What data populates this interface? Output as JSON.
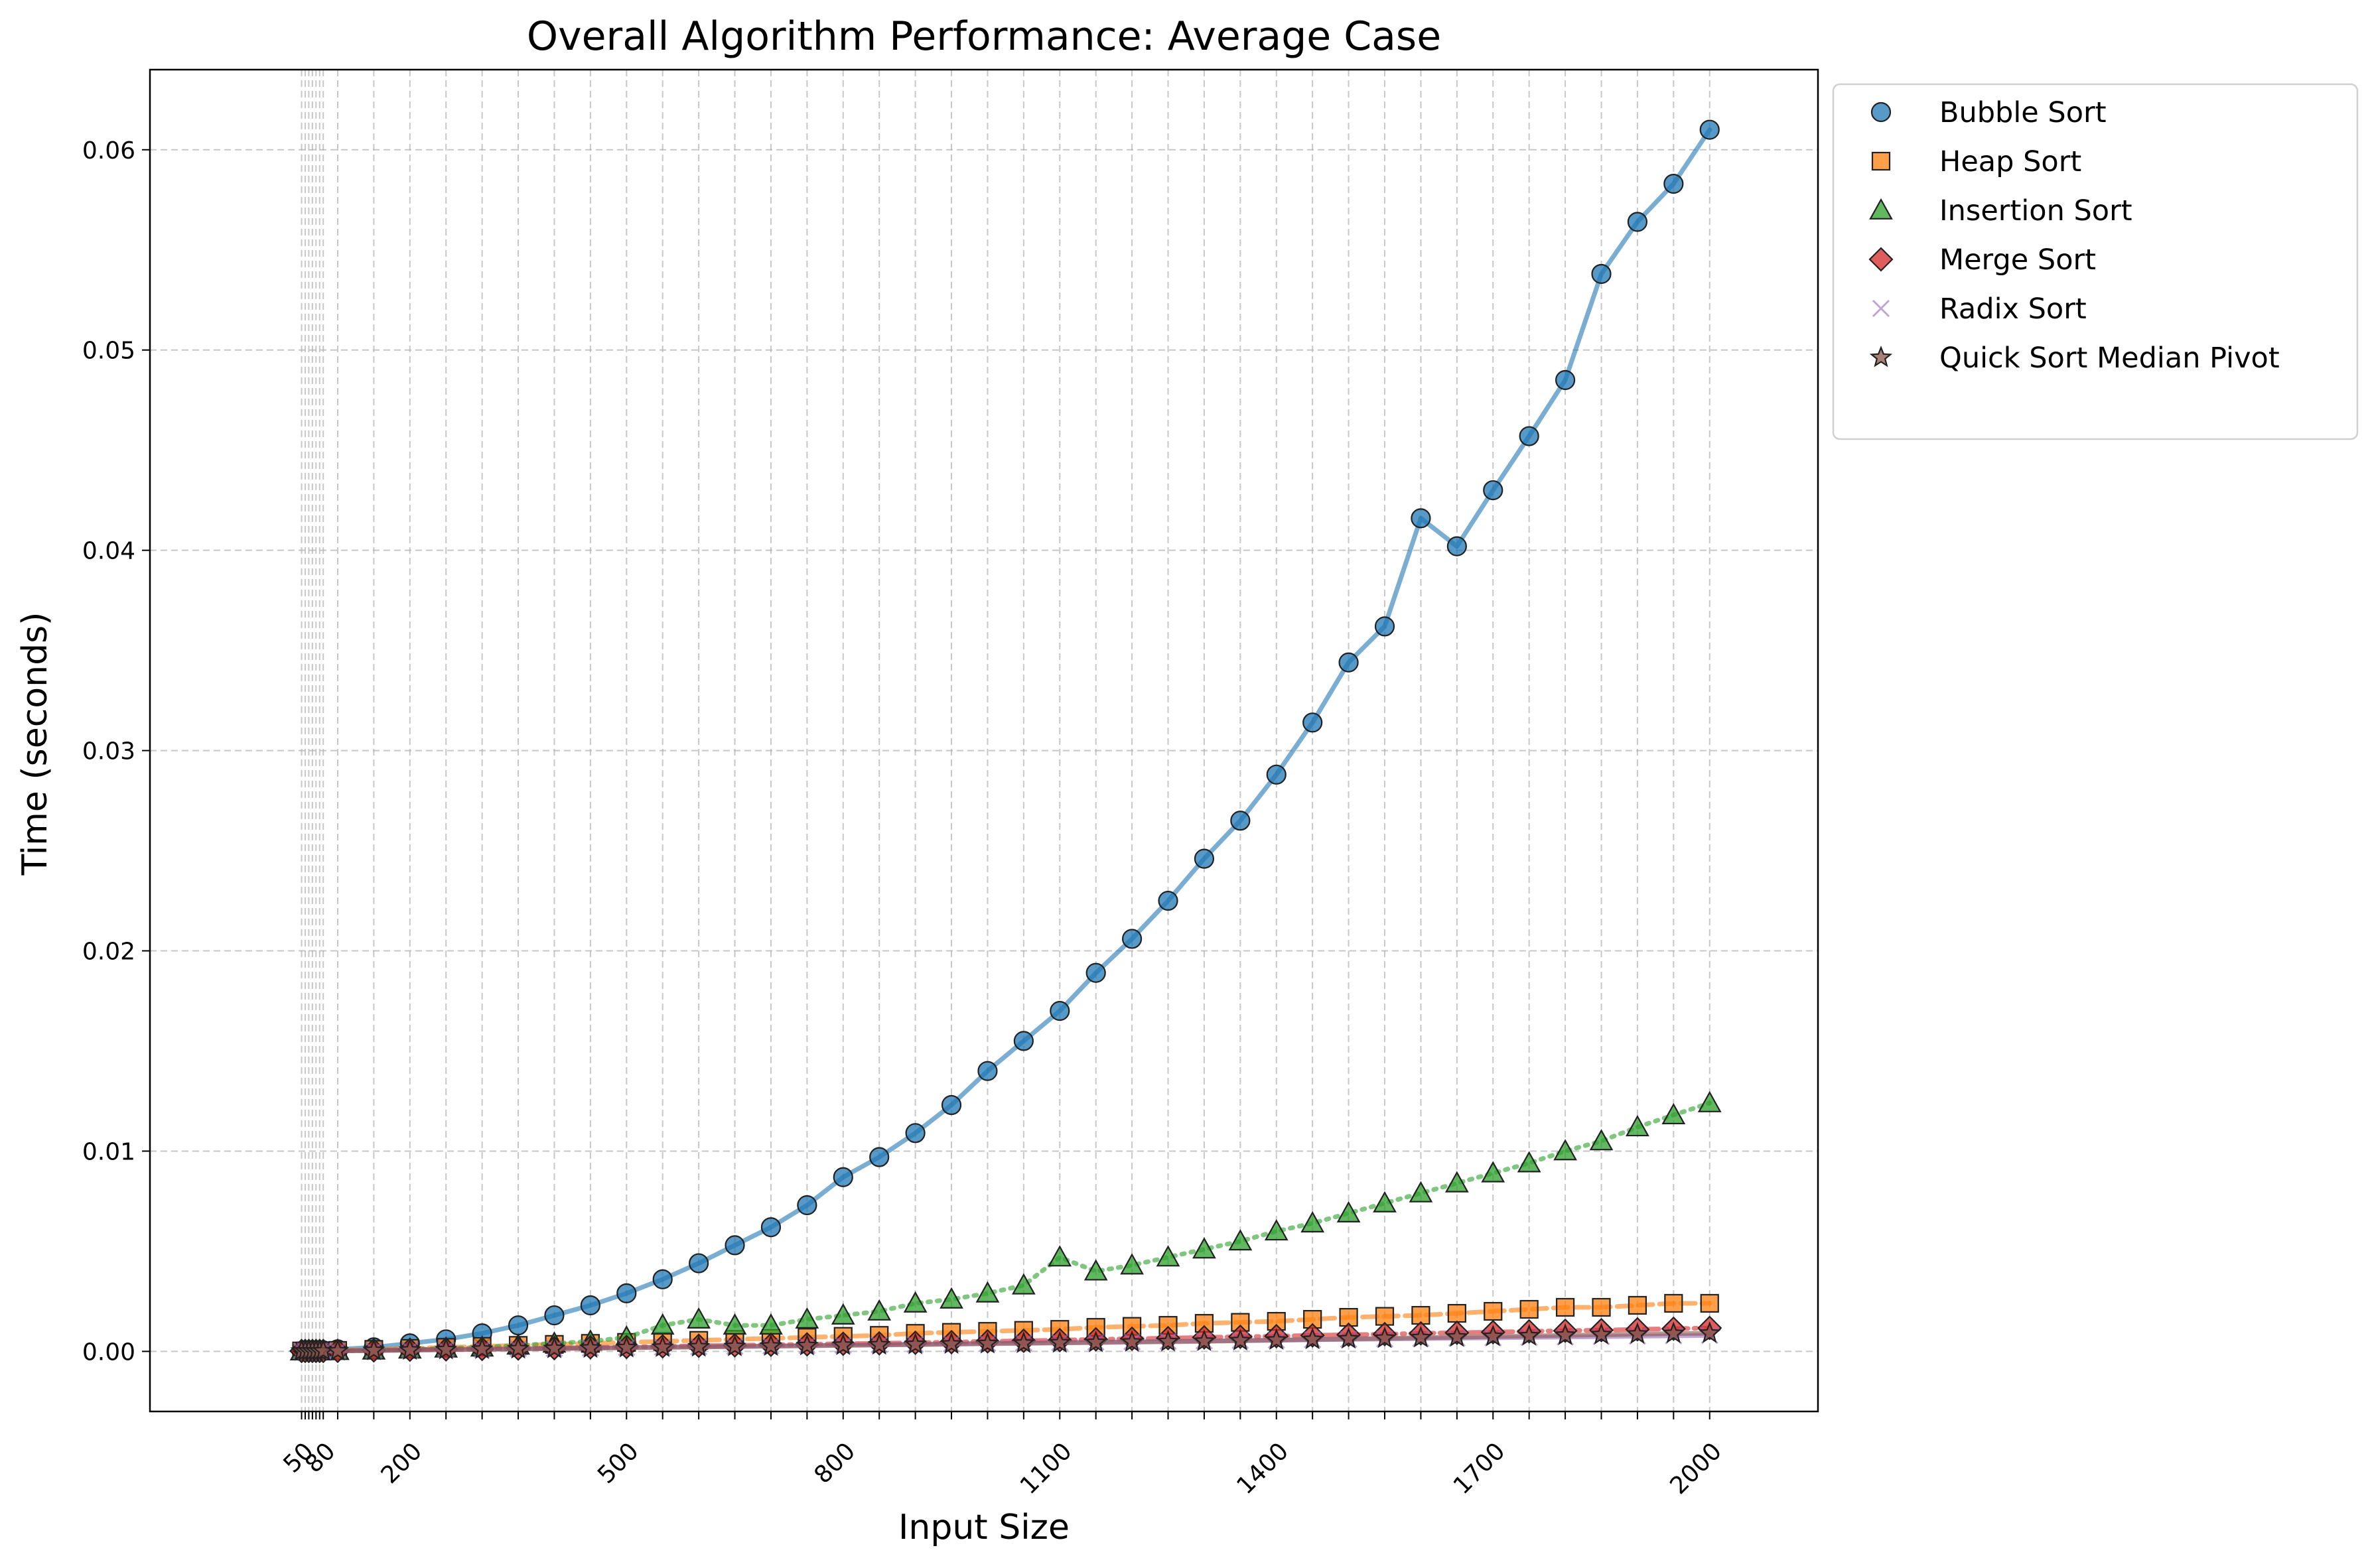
{
  "chart_data": {
    "type": "line",
    "title": "Overall Algorithm Performance: Average Case",
    "xlabel": "Input Size",
    "ylabel": "Time (seconds)",
    "xlim": [
      -160,
      2150
    ],
    "ylim": [
      -0.003,
      0.064
    ],
    "x_tick_labels": [
      "50",
      "80",
      "200",
      "500",
      "800",
      "1100",
      "1400",
      "1700",
      "2000"
    ],
    "x_tick_values": [
      50,
      80,
      200,
      500,
      800,
      1100,
      1400,
      1700,
      2000
    ],
    "x_minor_ticks": [
      50,
      55,
      60,
      65,
      70,
      75,
      80,
      100,
      150,
      200,
      250,
      300,
      350,
      400,
      450,
      500,
      550,
      600,
      650,
      700,
      750,
      800,
      850,
      900,
      950,
      1000,
      1050,
      1100,
      1150,
      1200,
      1250,
      1300,
      1350,
      1400,
      1450,
      1500,
      1550,
      1600,
      1650,
      1700,
      1750,
      1800,
      1850,
      1900,
      1950,
      2000
    ],
    "y_ticks": [
      0.0,
      0.01,
      0.02,
      0.03,
      0.04,
      0.05,
      0.06
    ],
    "y_tick_labels": [
      "0.00",
      "0.01",
      "0.02",
      "0.03",
      "0.04",
      "0.05",
      "0.06"
    ],
    "grid": true,
    "legend_position": "outside-upper-right",
    "x": [
      50,
      55,
      60,
      65,
      70,
      75,
      80,
      100,
      150,
      200,
      250,
      300,
      350,
      400,
      450,
      500,
      550,
      600,
      650,
      700,
      750,
      800,
      850,
      900,
      950,
      1000,
      1050,
      1100,
      1150,
      1200,
      1250,
      1300,
      1350,
      1400,
      1450,
      1500,
      1550,
      1600,
      1650,
      1700,
      1750,
      1800,
      1850,
      1900,
      1950,
      2000
    ],
    "series": [
      {
        "name": "Bubble Sort",
        "color": "#1f77b4",
        "marker": "circle",
        "line": "solid",
        "values": [
          2e-05,
          2e-05,
          3e-05,
          3e-05,
          4e-05,
          4e-05,
          5e-05,
          0.0001,
          0.0002,
          0.0004,
          0.0006,
          0.0009,
          0.0013,
          0.0018,
          0.0023,
          0.0029,
          0.0036,
          0.0044,
          0.0053,
          0.0062,
          0.0073,
          0.0087,
          0.0097,
          0.0109,
          0.0123,
          0.014,
          0.0155,
          0.017,
          0.0189,
          0.0206,
          0.0225,
          0.0246,
          0.0265,
          0.0288,
          0.0314,
          0.0344,
          0.0362,
          0.0416,
          0.0402,
          0.043,
          0.0457,
          0.0485,
          0.0538,
          0.0564,
          0.0583,
          0.061
        ]
      },
      {
        "name": "Heap Sort",
        "color": "#ff7f0e",
        "marker": "square",
        "line": "dashed",
        "values": [
          2e-05,
          2e-05,
          2e-05,
          2e-05,
          2e-05,
          3e-05,
          3e-05,
          5e-05,
          0.0001,
          0.00015,
          0.0002,
          0.00025,
          0.0003,
          0.00035,
          0.0004,
          0.00045,
          0.0005,
          0.00055,
          0.0006,
          0.00065,
          0.0007,
          0.00075,
          0.0008,
          0.0009,
          0.00095,
          0.001,
          0.00105,
          0.0011,
          0.0012,
          0.00125,
          0.0013,
          0.0014,
          0.00145,
          0.0015,
          0.0016,
          0.0017,
          0.00175,
          0.0018,
          0.0019,
          0.002,
          0.0021,
          0.0022,
          0.0022,
          0.0023,
          0.0024,
          0.0024
        ]
      },
      {
        "name": "Insertion Sort",
        "color": "#2ca02c",
        "marker": "triangle",
        "line": "dotted",
        "values": [
          1e-05,
          1e-05,
          1e-05,
          1e-05,
          1e-05,
          1e-05,
          2e-05,
          3e-05,
          5e-05,
          0.0001,
          0.00015,
          0.0002,
          0.0003,
          0.0004,
          0.0005,
          0.0007,
          0.0013,
          0.0016,
          0.0013,
          0.0013,
          0.0016,
          0.0018,
          0.002,
          0.0024,
          0.0026,
          0.0029,
          0.0033,
          0.0047,
          0.004,
          0.0043,
          0.0047,
          0.0051,
          0.0055,
          0.006,
          0.0064,
          0.0069,
          0.0074,
          0.0079,
          0.0084,
          0.0089,
          0.0094,
          0.01,
          0.0105,
          0.0112,
          0.0118,
          0.0124
        ]
      },
      {
        "name": "Merge Sort",
        "color": "#d62728",
        "marker": "diamond",
        "line": "dashdot",
        "values": [
          2e-05,
          2e-05,
          2e-05,
          2e-05,
          2e-05,
          2e-05,
          2e-05,
          3e-05,
          5e-05,
          8e-05,
          0.0001,
          0.00012,
          0.00014,
          0.00016,
          0.0002,
          0.00022,
          0.00025,
          0.00028,
          0.0003,
          0.00033,
          0.00035,
          0.00038,
          0.0004,
          0.00043,
          0.00046,
          0.0005,
          0.00053,
          0.00056,
          0.0006,
          0.00063,
          0.00066,
          0.0007,
          0.00073,
          0.00076,
          0.0008,
          0.00083,
          0.00086,
          0.0009,
          0.00093,
          0.00096,
          0.001,
          0.00103,
          0.00106,
          0.0011,
          0.00113,
          0.00117
        ]
      },
      {
        "name": "Radix Sort",
        "color": "#9467bd",
        "marker": "x",
        "line": "solid",
        "values": [
          2e-05,
          2e-05,
          2e-05,
          2e-05,
          2e-05,
          2e-05,
          2e-05,
          3e-05,
          5e-05,
          7e-05,
          9e-05,
          0.00011,
          0.00013,
          0.00015,
          0.00017,
          0.00019,
          0.00021,
          0.00023,
          0.00025,
          0.00027,
          0.00029,
          0.00031,
          0.00033,
          0.00035,
          0.00037,
          0.0004,
          0.00042,
          0.00044,
          0.00046,
          0.00048,
          0.0005,
          0.00052,
          0.00054,
          0.00056,
          0.00058,
          0.0006,
          0.00062,
          0.00064,
          0.00066,
          0.00068,
          0.0007,
          0.00072,
          0.00074,
          0.00076,
          0.00078,
          0.0008
        ]
      },
      {
        "name": "Quick Sort Median Pivot",
        "color": "#8c564b",
        "marker": "star",
        "line": "solid",
        "values": [
          1e-05,
          1e-05,
          1e-05,
          1e-05,
          1e-05,
          1e-05,
          2e-05,
          2e-05,
          4e-05,
          6e-05,
          8e-05,
          0.0001,
          0.00012,
          0.00014,
          0.00016,
          0.00018,
          0.0002,
          0.00022,
          0.00024,
          0.00026,
          0.00028,
          0.0003,
          0.00032,
          0.00034,
          0.00036,
          0.00038,
          0.0004,
          0.00042,
          0.00044,
          0.00046,
          0.00048,
          0.0005,
          0.00053,
          0.00056,
          0.00059,
          0.00062,
          0.00065,
          0.00068,
          0.00071,
          0.00074,
          0.00077,
          0.0008,
          0.00083,
          0.00086,
          0.00089,
          0.0009
        ]
      }
    ]
  }
}
